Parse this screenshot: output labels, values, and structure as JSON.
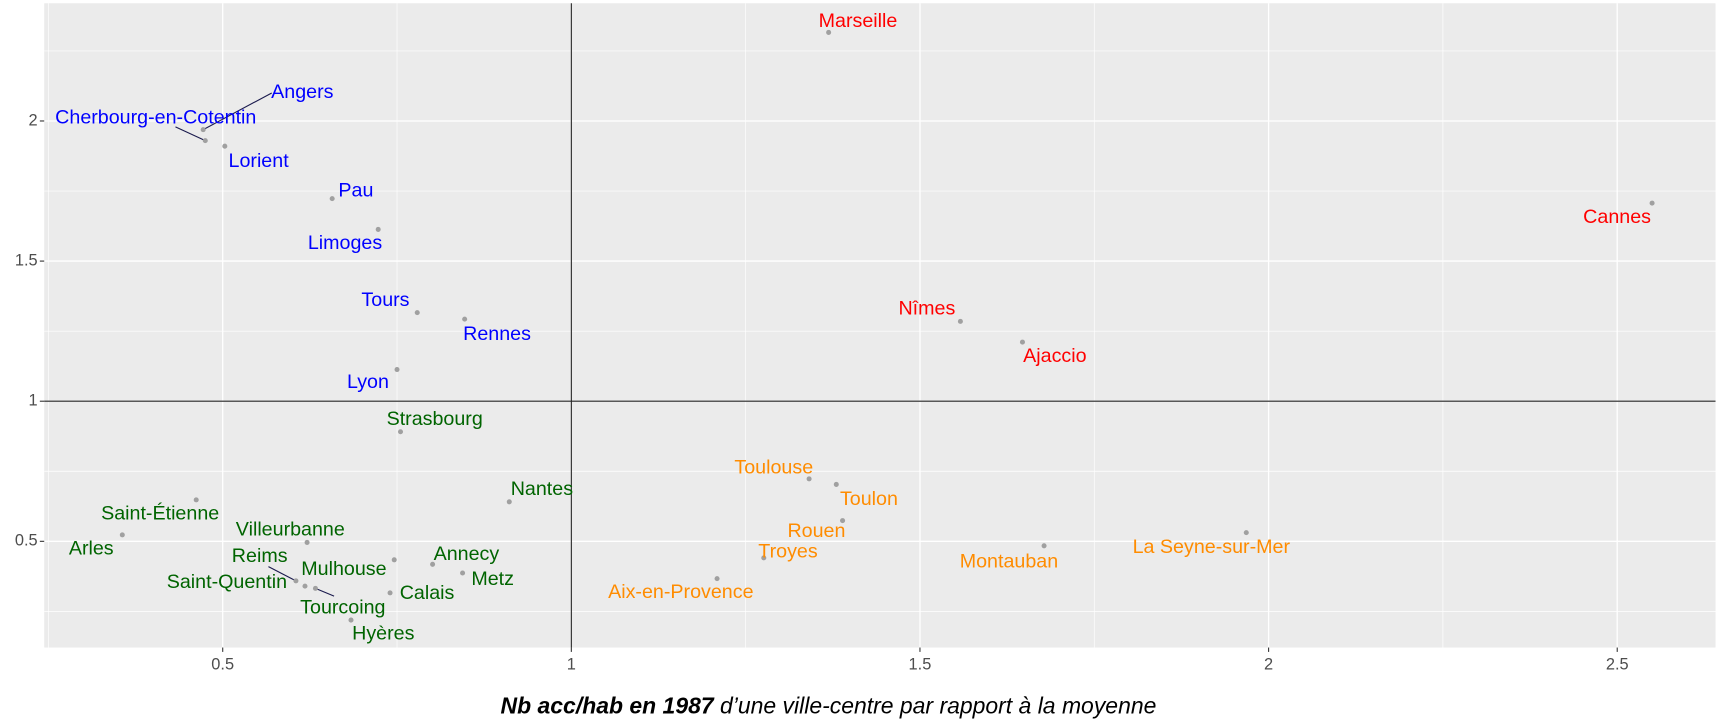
{
  "chart_data": {
    "type": "scatter",
    "x_label": [
      "Nb acc/hab en 1987",
      "d’une ville-centre par rapport à la moyenne"
    ],
    "xlim": [
      0.244,
      2.641
    ],
    "ylim": [
      0.121,
      2.42
    ],
    "xticks": [
      0.5,
      1.0,
      1.5,
      2.0,
      2.5
    ],
    "yticks": [
      0.5,
      1.0,
      1.5,
      2.0
    ],
    "minor_xticks": [
      0.25,
      0.75,
      1.25,
      1.75,
      2.25
    ],
    "minor_yticks": [
      0.25,
      0.75,
      1.25,
      1.75,
      2.25
    ],
    "grid": true,
    "vline": 1,
    "hline": 1,
    "points": [
      {
        "label": "Marseille",
        "x": 1.369,
        "y": 2.316,
        "color": "#ff0000"
      },
      {
        "label": "Angers",
        "x": 0.472,
        "y": 1.969,
        "color": "#0000ff"
      },
      {
        "label": "Cherbourg-en-Cotentin",
        "x": 0.475,
        "y": 1.93,
        "color": "#0000ff"
      },
      {
        "label": "Lorient",
        "x": 0.503,
        "y": 1.91,
        "color": "#0000ff"
      },
      {
        "label": "Pau",
        "x": 0.657,
        "y": 1.723,
        "color": "#0000ff"
      },
      {
        "label": "Limoges",
        "x": 0.723,
        "y": 1.613,
        "color": "#0000ff"
      },
      {
        "label": "Tours",
        "x": 0.779,
        "y": 1.316,
        "color": "#0000ff"
      },
      {
        "label": "Rennes",
        "x": 0.847,
        "y": 1.293,
        "color": "#0000ff"
      },
      {
        "label": "Lyon",
        "x": 0.75,
        "y": 1.113,
        "color": "#0000ff"
      },
      {
        "label": "Cannes",
        "x": 2.55,
        "y": 1.707,
        "color": "#ff0000"
      },
      {
        "label": "Nîmes",
        "x": 1.558,
        "y": 1.285,
        "color": "#ff0000"
      },
      {
        "label": "Ajaccio",
        "x": 1.647,
        "y": 1.211,
        "color": "#ff0000"
      },
      {
        "label": "Strasbourg",
        "x": 0.755,
        "y": 0.891,
        "color": "#006400"
      },
      {
        "label": "Nantes",
        "x": 0.911,
        "y": 0.641,
        "color": "#006400"
      },
      {
        "label": "Saint-Étienne",
        "x": 0.462,
        "y": 0.648,
        "color": "#006400"
      },
      {
        "label": "Arles",
        "x": 0.356,
        "y": 0.523,
        "color": "#006400"
      },
      {
        "label": "Villeurbanne",
        "x": 0.621,
        "y": 0.496,
        "color": "#006400"
      },
      {
        "label": "Reims",
        "x": 0.605,
        "y": 0.359,
        "color": "#006400"
      },
      {
        "label": "Saint-Quentin",
        "x": 0.618,
        "y": 0.34,
        "color": "#006400"
      },
      {
        "label": "Tourcoing",
        "x": 0.633,
        "y": 0.332,
        "color": "#006400"
      },
      {
        "label": "Mulhouse",
        "x": 0.746,
        "y": 0.434,
        "color": "#006400"
      },
      {
        "label": "Annecy",
        "x": 0.801,
        "y": 0.418,
        "color": "#006400"
      },
      {
        "label": "Metz",
        "x": 0.844,
        "y": 0.387,
        "color": "#006400"
      },
      {
        "label": "Calais",
        "x": 0.74,
        "y": 0.316,
        "color": "#006400"
      },
      {
        "label": "Hyères",
        "x": 0.684,
        "y": 0.219,
        "color": "#006400"
      },
      {
        "label": "Toulouse",
        "x": 1.341,
        "y": 0.723,
        "color": "#ff8c00"
      },
      {
        "label": "Toulon",
        "x": 1.38,
        "y": 0.703,
        "color": "#ff8c00"
      },
      {
        "label": "Rouen",
        "x": 1.389,
        "y": 0.574,
        "color": "#ff8c00"
      },
      {
        "label": "Troyes",
        "x": 1.276,
        "y": 0.441,
        "color": "#ff8c00"
      },
      {
        "label": "Aix-en-Provence",
        "x": 1.209,
        "y": 0.367,
        "color": "#ff8c00"
      },
      {
        "label": "Montauban",
        "x": 1.678,
        "y": 0.484,
        "color": "#ff8c00"
      },
      {
        "label": "La Seyne-sur-Mer",
        "x": 1.968,
        "y": 0.531,
        "color": "#ff8c00"
      }
    ]
  }
}
